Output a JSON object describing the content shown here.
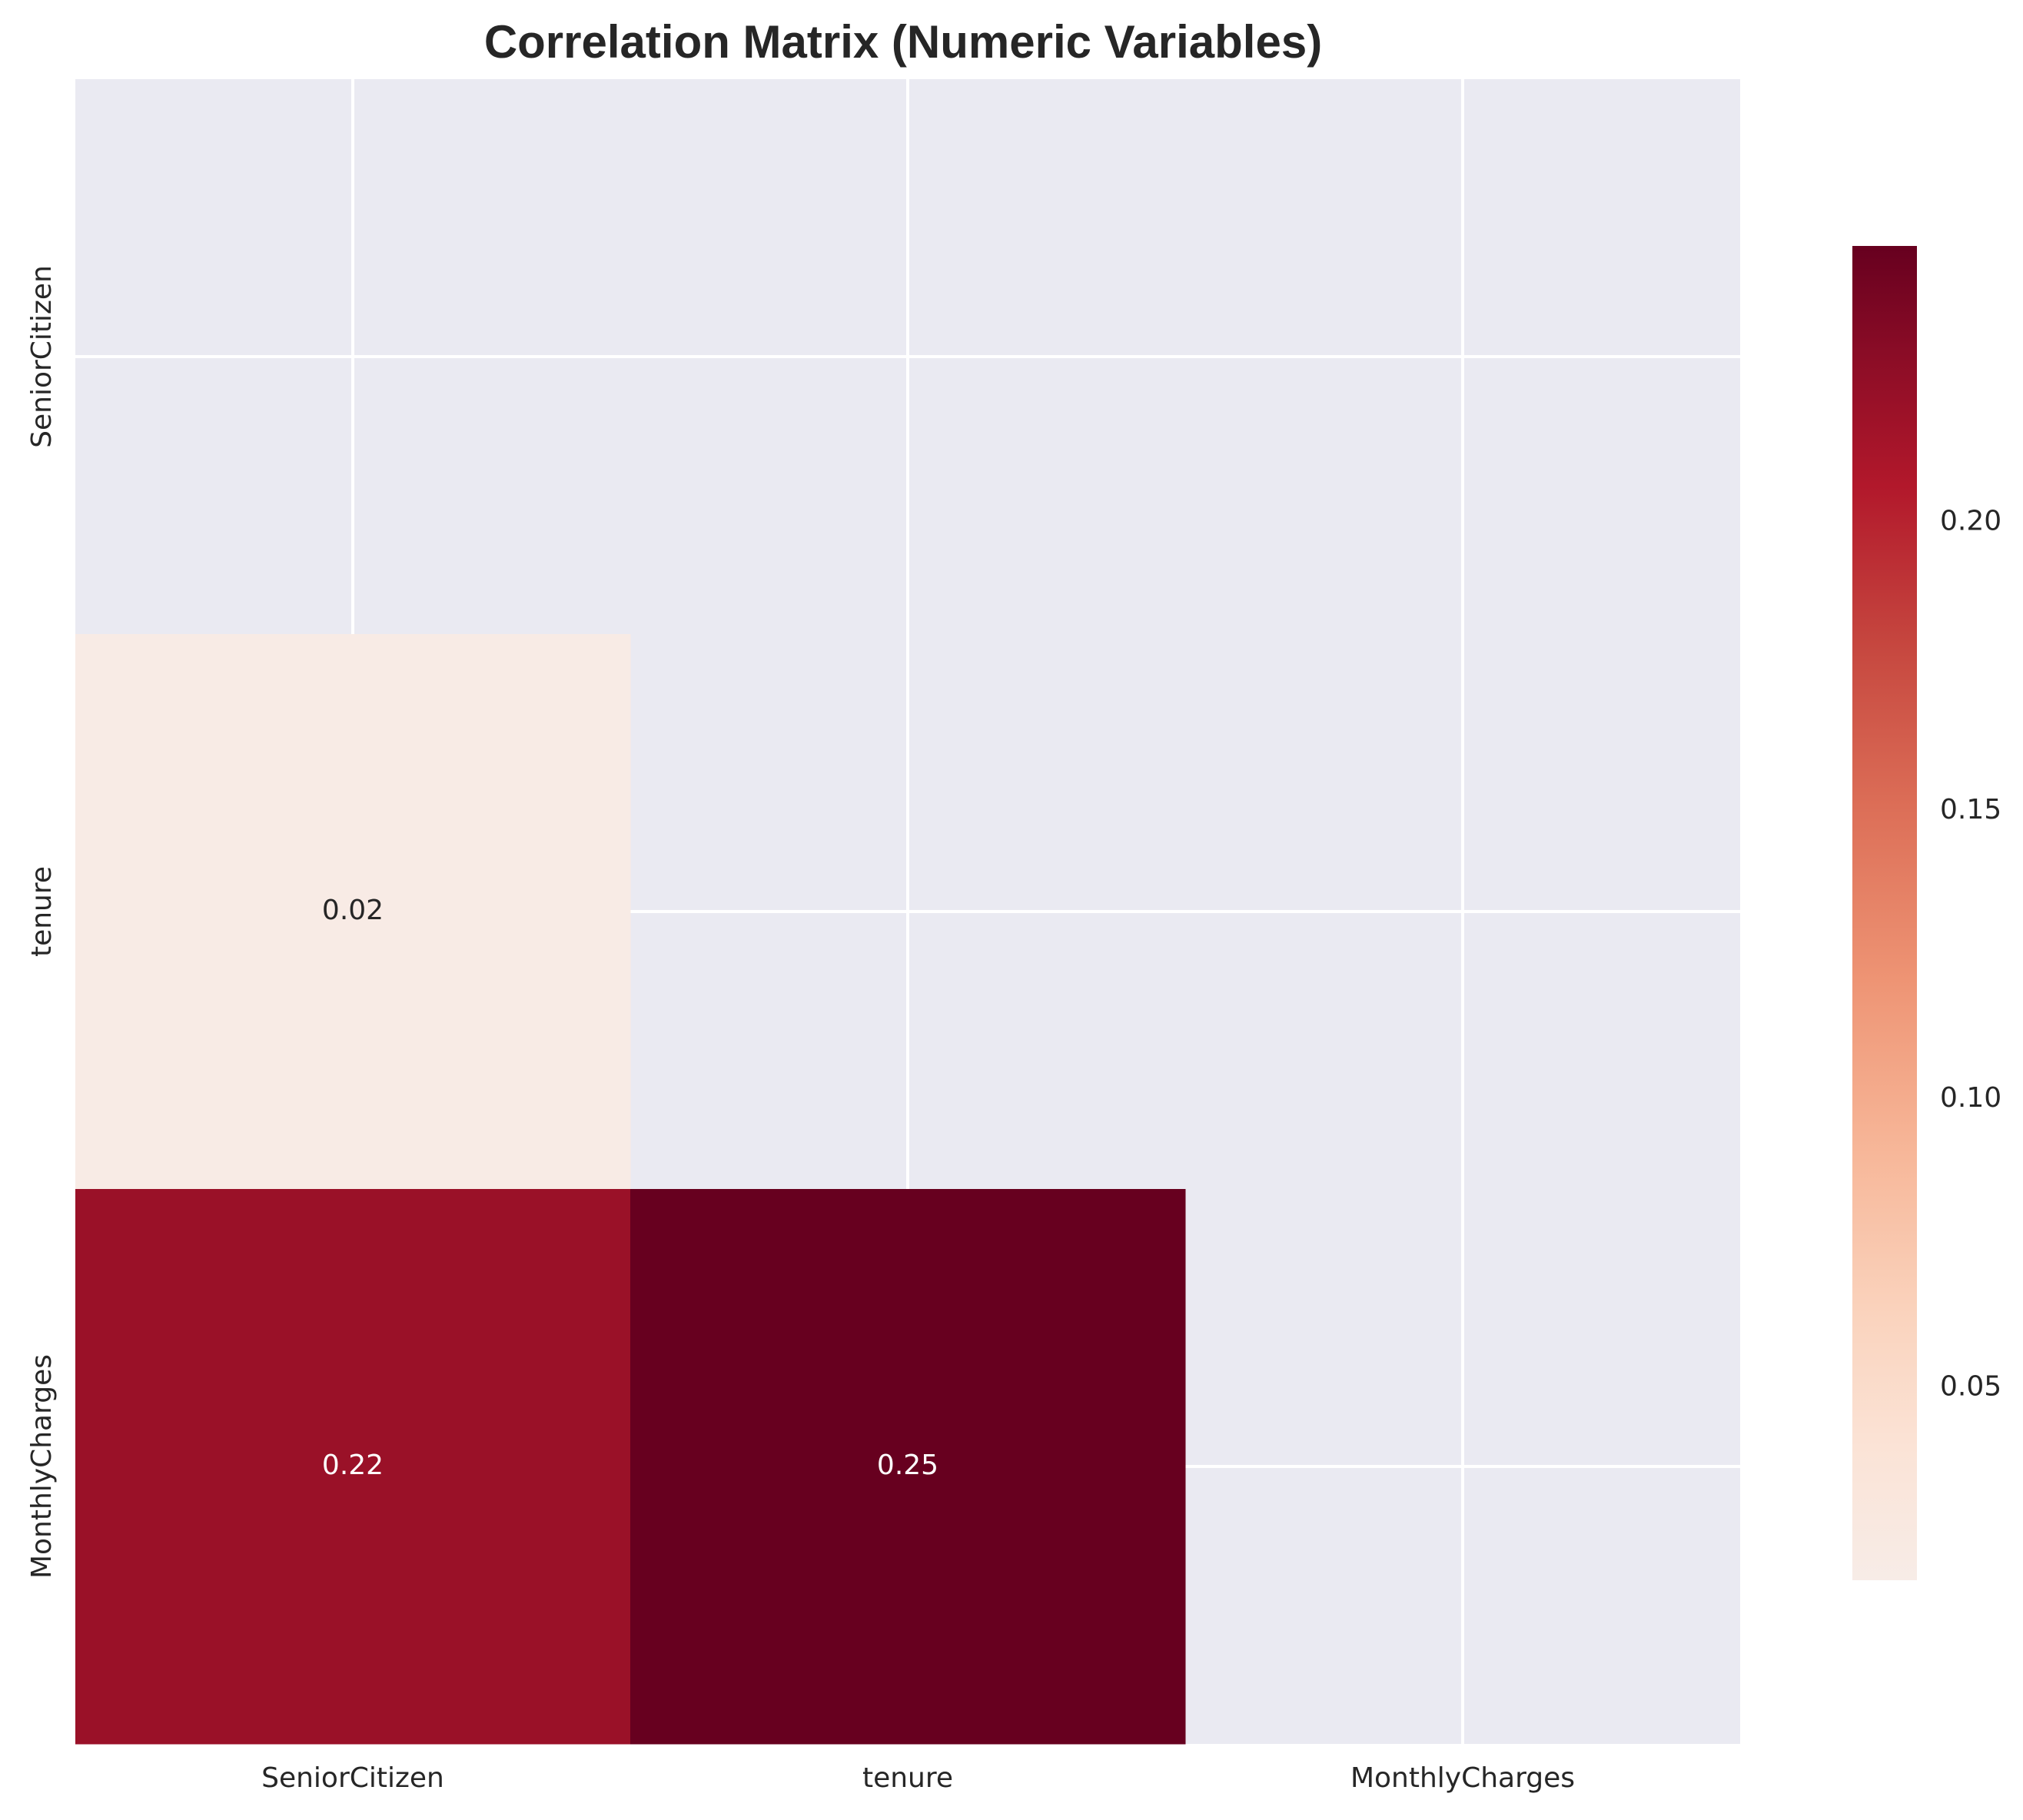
{
  "chart_data": {
    "type": "heatmap",
    "title": "Correlation Matrix (Numeric Variables)",
    "variables": [
      "SeniorCitizen",
      "tenure",
      "MonthlyCharges"
    ],
    "mask": "upper-triangle-and-diagonal",
    "cells": [
      {
        "row": "tenure",
        "col": "SeniorCitizen",
        "value": 0.02,
        "label": "0.02"
      },
      {
        "row": "MonthlyCharges",
        "col": "SeniorCitizen",
        "value": 0.22,
        "label": "0.22"
      },
      {
        "row": "MonthlyCharges",
        "col": "tenure",
        "value": 0.25,
        "label": "0.25"
      }
    ],
    "colormap": "RdBu_r (upper half)",
    "color_range": [
      0.0166,
      0.2479
    ],
    "colorbar": {
      "ticks": [
        0.05,
        0.1,
        0.15,
        0.2
      ],
      "tick_labels": [
        "0.05",
        "0.10",
        "0.15",
        "0.20"
      ]
    },
    "masked_color": "#eaeaf2",
    "grid": true,
    "grid_color": "#ffffff"
  }
}
